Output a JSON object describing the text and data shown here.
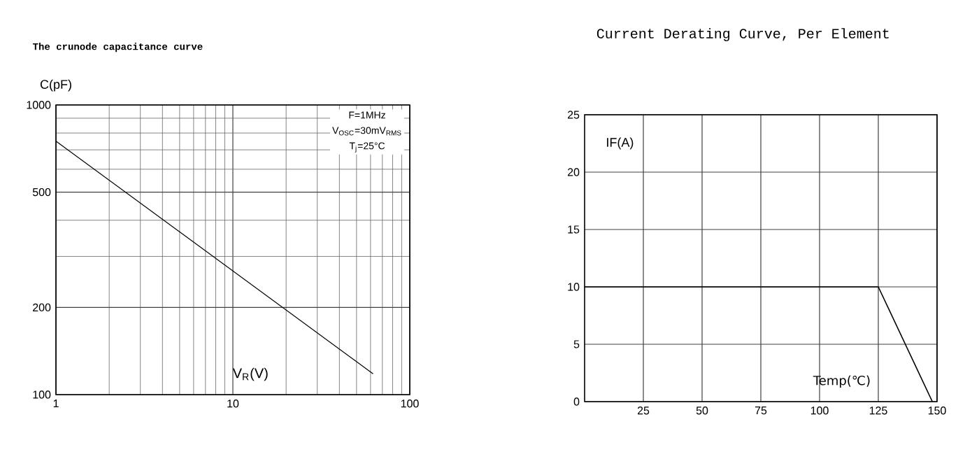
{
  "chart_data": [
    {
      "type": "line",
      "title": "The crunode capacitance curve",
      "xlabel": "V$_{R}$(V)",
      "ylabel": "C(pF)",
      "log": "xy",
      "grid": true,
      "x": [
        1,
        62
      ],
      "values": [
        750,
        118
      ],
      "color": "#000000",
      "xlim": [
        1,
        100
      ],
      "ylim": [
        100,
        1000
      ],
      "xticks": [
        1,
        10,
        100
      ],
      "yticks": [
        100,
        200,
        500,
        1000
      ],
      "annotations": [
        "F=1MHz",
        "V$_{OSC}$=30mV$_{RMS}$",
        "T$_{j}$=25°C"
      ]
    },
    {
      "type": "line",
      "title": "Current Derating Curve, Per Element",
      "xlabel": "Temp(℃)",
      "ylabel": "IF(A)",
      "grid": true,
      "x": [
        0,
        125,
        148
      ],
      "values": [
        10,
        10,
        0
      ],
      "color": "#000000",
      "xlim": [
        0,
        150
      ],
      "ylim": [
        0,
        25
      ],
      "xticks": [
        25,
        50,
        75,
        100,
        125,
        150
      ],
      "yticks": [
        0,
        5,
        10,
        15,
        20,
        25
      ]
    }
  ]
}
